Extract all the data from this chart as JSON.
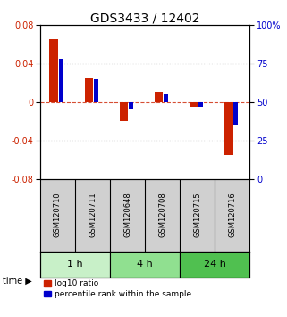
{
  "title": "GDS3433 / 12402",
  "samples": [
    "GSM120710",
    "GSM120711",
    "GSM120648",
    "GSM120708",
    "GSM120715",
    "GSM120716"
  ],
  "log10_ratio": [
    0.065,
    0.025,
    -0.02,
    0.01,
    -0.005,
    -0.055
  ],
  "percentile_rank": [
    78,
    65,
    45,
    55,
    47,
    35
  ],
  "groups": [
    {
      "label": "1 h",
      "start": 0,
      "end": 2,
      "color": "#c8f0c8"
    },
    {
      "label": "4 h",
      "start": 2,
      "end": 4,
      "color": "#90e090"
    },
    {
      "label": "24 h",
      "start": 4,
      "end": 6,
      "color": "#50c050"
    }
  ],
  "ylim": [
    -0.08,
    0.08
  ],
  "yticks_left": [
    -0.08,
    -0.04,
    0,
    0.04,
    0.08
  ],
  "yticks_right": [
    0,
    25,
    50,
    75,
    100
  ],
  "red_color": "#cc2200",
  "blue_color": "#0000cc",
  "red_bar_width": 0.25,
  "blue_bar_width": 0.12,
  "title_fontsize": 10,
  "tick_fontsize": 7,
  "sample_fontsize": 6,
  "group_fontsize": 8,
  "legend_fontsize": 6.5
}
